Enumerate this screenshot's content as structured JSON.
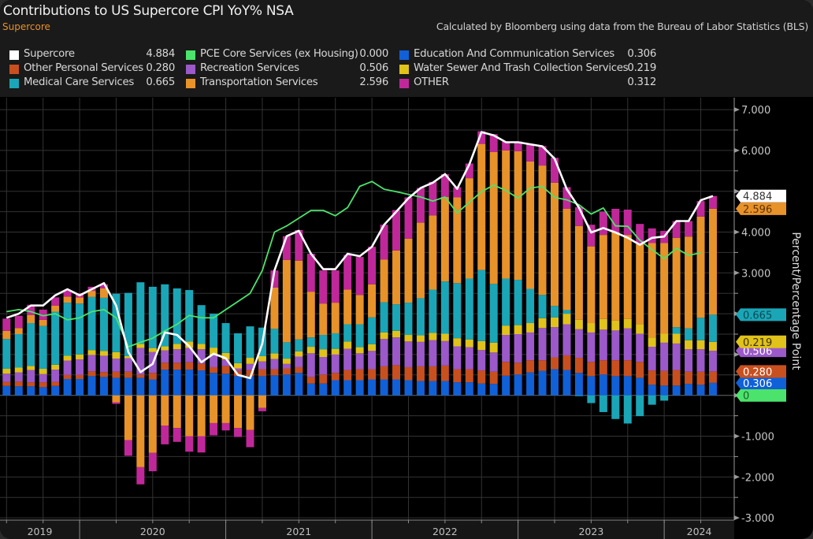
{
  "header": {
    "title": "Contributions to US Supercore CPI YoY% NSA",
    "subtitle": "Supercore",
    "source": "Calculated by Bloomberg using data from the Bureau of Labor Statistics (BLS)"
  },
  "legend": {
    "items": [
      {
        "name": "Supercore",
        "value": "4.884",
        "color": "#ffffff"
      },
      {
        "name": "Other Personal Services",
        "value": "0.280",
        "color": "#c8501e"
      },
      {
        "name": "Medical Care Services",
        "value": "0.665",
        "color": "#1aa6b7"
      },
      {
        "name": "PCE Core Services (ex Housing)",
        "value": "0.000",
        "color": "#4be36b"
      },
      {
        "name": "Recreation Services",
        "value": "0.506",
        "color": "#9b59c9"
      },
      {
        "name": "Transportation Services",
        "value": "2.596",
        "color": "#e8922a"
      },
      {
        "name": "Education And Communication Services",
        "value": "0.306",
        "color": "#1060d8"
      },
      {
        "name": "Water Sewer And Trash Collection Services",
        "value": "0.219",
        "color": "#e0c21a"
      },
      {
        "name": "OTHER",
        "value": "0.312",
        "color": "#c0289a"
      }
    ]
  },
  "chart_data": {
    "type": "bar",
    "stacked": true,
    "title": "Contributions to US Supercore CPI YoY% NSA",
    "ylabel": "Percent/Percentage Point",
    "xlabel": "",
    "ylim": [
      -3,
      7
    ],
    "grid": true,
    "y_tick_labels": [
      {
        "value": 7,
        "label": "7.000"
      },
      {
        "value": 6,
        "label": "6.000"
      },
      {
        "value": 4,
        "label": "4.000"
      },
      {
        "value": 3,
        "label": "3.000"
      },
      {
        "value": -1,
        "label": "-1.000"
      },
      {
        "value": -2,
        "label": "-2.000"
      },
      {
        "value": -3,
        "label": "-3.000"
      }
    ],
    "year_labels": [
      "2019",
      "2020",
      "2021",
      "2022",
      "2023",
      "2024"
    ],
    "x": [
      "2019-06",
      "2019-07",
      "2019-08",
      "2019-09",
      "2019-10",
      "2019-11",
      "2019-12",
      "2020-01",
      "2020-02",
      "2020-03",
      "2020-04",
      "2020-05",
      "2020-06",
      "2020-07",
      "2020-08",
      "2020-09",
      "2020-10",
      "2020-11",
      "2020-12",
      "2021-01",
      "2021-02",
      "2021-03",
      "2021-04",
      "2021-05",
      "2021-06",
      "2021-07",
      "2021-08",
      "2021-09",
      "2021-10",
      "2021-11",
      "2021-12",
      "2022-01",
      "2022-02",
      "2022-03",
      "2022-04",
      "2022-05",
      "2022-06",
      "2022-07",
      "2022-08",
      "2022-09",
      "2022-10",
      "2022-11",
      "2022-12",
      "2023-01",
      "2023-02",
      "2023-03",
      "2023-04",
      "2023-05",
      "2023-06",
      "2023-07",
      "2023-08",
      "2023-09",
      "2023-10",
      "2023-11",
      "2023-12",
      "2024-01",
      "2024-02",
      "2024-03",
      "2024-04"
    ],
    "bar_series": [
      {
        "name": "Education And Communication Services",
        "color": "#1060d8",
        "tag": "0.306",
        "tag_text": "#ffffff",
        "values": [
          0.23,
          0.22,
          0.22,
          0.2,
          0.23,
          0.4,
          0.4,
          0.47,
          0.45,
          0.43,
          0.43,
          0.43,
          0.39,
          0.63,
          0.63,
          0.63,
          0.61,
          0.55,
          0.53,
          0.47,
          0.47,
          0.47,
          0.49,
          0.51,
          0.55,
          0.29,
          0.29,
          0.37,
          0.37,
          0.37,
          0.39,
          0.39,
          0.39,
          0.37,
          0.35,
          0.35,
          0.35,
          0.32,
          0.32,
          0.29,
          0.28,
          0.48,
          0.51,
          0.56,
          0.6,
          0.64,
          0.62,
          0.55,
          0.47,
          0.51,
          0.47,
          0.47,
          0.43,
          0.26,
          0.24,
          0.24,
          0.28,
          0.26,
          0.306
        ]
      },
      {
        "name": "Other Personal Services",
        "color": "#c8501e",
        "tag": "0.280",
        "tag_text": "#ffffff",
        "values": [
          0.1,
          0.12,
          0.1,
          0.12,
          0.1,
          0.1,
          0.1,
          0.12,
          0.12,
          0.15,
          0.15,
          0.08,
          0.16,
          0.17,
          0.17,
          0.18,
          0.17,
          0.14,
          0.19,
          0.13,
          0.15,
          0.17,
          0.15,
          0.15,
          0.14,
          0.16,
          0.22,
          0.18,
          0.25,
          0.27,
          0.25,
          0.32,
          0.35,
          0.32,
          0.36,
          0.36,
          0.38,
          0.32,
          0.32,
          0.32,
          0.3,
          0.34,
          0.29,
          0.3,
          0.26,
          0.29,
          0.36,
          0.37,
          0.35,
          0.35,
          0.39,
          0.39,
          0.39,
          0.35,
          0.36,
          0.38,
          0.3,
          0.32,
          0.28
        ]
      },
      {
        "name": "Recreation Services",
        "color": "#9b59c9",
        "tag": "0.506",
        "tag_text": "#ffffff",
        "values": [
          0.2,
          0.22,
          0.3,
          0.2,
          0.3,
          0.35,
          0.38,
          0.4,
          0.4,
          0.32,
          0.33,
          0.65,
          0.51,
          0.3,
          0.33,
          0.35,
          0.35,
          0.29,
          0.16,
          0.06,
          0.15,
          0.19,
          0.25,
          0.11,
          0.26,
          0.58,
          0.43,
          0.45,
          0.52,
          0.39,
          0.45,
          0.67,
          0.68,
          0.63,
          0.6,
          0.64,
          0.6,
          0.56,
          0.54,
          0.5,
          0.47,
          0.66,
          0.7,
          0.68,
          0.79,
          0.74,
          0.76,
          0.7,
          0.72,
          0.75,
          0.73,
          0.78,
          0.69,
          0.58,
          0.69,
          0.65,
          0.55,
          0.55,
          0.506
        ]
      },
      {
        "name": "Water Sewer And Trash Collection Services",
        "color": "#e0c21a",
        "tag": "0.219",
        "tag_text": "#3a3000",
        "values": [
          0.12,
          0.12,
          0.1,
          0.13,
          0.12,
          0.12,
          0.12,
          0.12,
          0.12,
          0.16,
          0.05,
          0.1,
          0.1,
          0.1,
          0.13,
          0.16,
          0.13,
          0.19,
          0.16,
          0.13,
          0.15,
          0.13,
          0.14,
          0.13,
          0.13,
          0.16,
          0.19,
          0.14,
          0.18,
          0.15,
          0.16,
          0.16,
          0.16,
          0.16,
          0.16,
          0.18,
          0.18,
          0.2,
          0.19,
          0.22,
          0.24,
          0.23,
          0.22,
          0.23,
          0.24,
          0.24,
          0.26,
          0.23,
          0.23,
          0.26,
          0.24,
          0.23,
          0.23,
          0.23,
          0.22,
          0.24,
          0.22,
          0.22,
          0.219
        ]
      },
      {
        "name": "Medical Care Services",
        "color": "#1aa6b7",
        "tag": "0.665",
        "tag_text": "#0b4a52",
        "values": [
          0.73,
          0.82,
          1.05,
          1.05,
          1.3,
          1.3,
          1.25,
          1.3,
          1.3,
          1.43,
          1.55,
          1.51,
          1.5,
          1.52,
          1.36,
          1.26,
          0.95,
          0.83,
          0.73,
          0.73,
          0.77,
          0.7,
          0.6,
          0.4,
          0.29,
          0.23,
          0.35,
          0.38,
          0.42,
          0.56,
          0.66,
          0.74,
          0.65,
          0.79,
          0.91,
          1.06,
          1.28,
          1.35,
          1.49,
          1.74,
          1.44,
          1.15,
          1.11,
          0.84,
          0.57,
          0.28,
          0.09,
          -0.02,
          -0.19,
          -0.41,
          -0.58,
          -0.69,
          -0.51,
          -0.23,
          -0.13,
          0.16,
          0.29,
          0.55,
          0.665
        ]
      },
      {
        "name": "Transportation Services",
        "color": "#e8922a",
        "tag": "2.596",
        "tag_text": "#5a3408",
        "values": [
          0.2,
          0.15,
          0.2,
          0.15,
          0.15,
          0.15,
          0.15,
          0.15,
          0.23,
          -0.17,
          -1.1,
          -1.76,
          -1.41,
          -0.74,
          -0.8,
          -1.0,
          -1.0,
          -0.68,
          -0.68,
          -0.8,
          -0.85,
          -0.31,
          1.01,
          2.02,
          1.93,
          1.12,
          0.77,
          0.75,
          0.85,
          0.72,
          0.81,
          1.05,
          1.32,
          1.57,
          1.85,
          1.82,
          2.07,
          2.1,
          2.46,
          3.09,
          3.23,
          3.14,
          3.15,
          3.12,
          3.17,
          3.02,
          2.48,
          2.3,
          1.88,
          2.06,
          2.16,
          2.06,
          1.96,
          2.31,
          2.22,
          2.19,
          2.25,
          2.48,
          2.596
        ]
      },
      {
        "name": "OTHER",
        "color": "#c0289a",
        "tag": "",
        "tag_text": "#ffffff",
        "values": [
          0.3,
          0.3,
          0.25,
          0.25,
          0.2,
          0.15,
          0.1,
          0.1,
          0.1,
          -0.04,
          -0.38,
          -0.42,
          -0.45,
          -0.46,
          -0.34,
          -0.38,
          -0.4,
          -0.3,
          -0.18,
          -0.22,
          -0.42,
          -0.08,
          0.42,
          0.58,
          0.75,
          0.93,
          0.81,
          0.79,
          0.85,
          0.93,
          0.92,
          0.85,
          0.99,
          1.01,
          0.85,
          0.82,
          0.56,
          0.25,
          0.36,
          0.31,
          0.44,
          0.22,
          0.24,
          0.42,
          0.48,
          0.61,
          0.53,
          0.46,
          0.53,
          0.57,
          0.58,
          0.62,
          0.5,
          0.36,
          0.3,
          0.41,
          0.38,
          0.38,
          0.312
        ]
      }
    ],
    "line_series": [
      {
        "name": "Supercore",
        "color": "#ffffff",
        "tag": "4.884",
        "tag_text": "#333333",
        "values": [
          1.9,
          2.0,
          2.2,
          2.2,
          2.45,
          2.6,
          2.45,
          2.6,
          2.75,
          2.2,
          1.06,
          0.57,
          0.77,
          1.54,
          1.48,
          1.2,
          0.81,
          1.02,
          0.91,
          0.5,
          0.42,
          1.27,
          3.06,
          3.9,
          4.03,
          3.47,
          3.09,
          3.09,
          3.47,
          3.41,
          3.64,
          4.18,
          4.5,
          4.83,
          5.08,
          5.21,
          5.42,
          5.06,
          5.66,
          6.45,
          6.37,
          6.2,
          6.2,
          6.15,
          6.1,
          5.8,
          5.05,
          4.6,
          3.99,
          4.1,
          3.99,
          3.86,
          3.69,
          3.86,
          3.89,
          4.27,
          4.27,
          4.78,
          4.884
        ]
      },
      {
        "name": "PCE Core Services (ex Housing)",
        "color": "#4be36b",
        "tag": "0",
        "tag_text": "#1d5a28",
        "values": [
          2.05,
          2.1,
          2.05,
          1.95,
          2.0,
          1.85,
          1.9,
          2.05,
          2.1,
          1.9,
          1.19,
          1.3,
          1.4,
          1.58,
          1.74,
          1.96,
          1.9,
          1.9,
          2.1,
          2.3,
          2.5,
          3.06,
          4.0,
          4.15,
          4.34,
          4.53,
          4.53,
          4.4,
          4.6,
          5.12,
          5.24,
          5.05,
          4.99,
          4.92,
          4.86,
          4.76,
          4.86,
          4.47,
          4.73,
          4.99,
          5.15,
          5.02,
          4.83,
          5.08,
          5.12,
          4.85,
          4.79,
          4.67,
          4.44,
          4.59,
          4.15,
          4.14,
          3.8,
          3.57,
          3.35,
          3.6,
          3.43,
          3.49,
          null
        ]
      }
    ]
  }
}
